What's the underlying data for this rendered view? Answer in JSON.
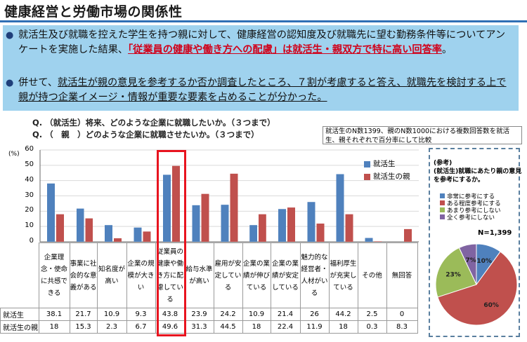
{
  "title": "健康経営と労働市場の関係性",
  "bullets": [
    {
      "pre": "就活生及び就職を控えた学生を持つ親に対して、健康経営の認知度及び就職先に望む勤務条件等についてアンケートを実施した結果、",
      "hl": "「従業員の健康や働き方への配慮」は就活生・親双方で特に高い回答率",
      "post": "。"
    },
    {
      "pre": "併せて、",
      "ul": "就活生が親の意見を参考するか否か調査したところ、７割が考慮すると答え、就職先を検討する上で親が持つ企業イメージ・情報が重要な要素を占めることが分かった。"
    }
  ],
  "questions": [
    "Q.  （就活生）将来、どのような企業に就職したいか。（３つまで）",
    "Q.  （　親　）どのような企業に就職させたいか。（３つまで）"
  ],
  "note": "就活生のN数1399、親のN数1000における複数回答数を就活生、親それぞれで百分率にして比較",
  "chart_data": [
    {
      "type": "bar",
      "ylabel": "(%)",
      "ylim": [
        0,
        60
      ],
      "yticks": [
        0,
        10,
        20,
        30,
        40,
        50,
        60
      ],
      "categories": [
        "企業理念・使命に共感できる",
        "事業に社会的な意義がある",
        "知名度が高い",
        "企業の規模が大きい",
        "従業員の健康や働き方に配慮している",
        "給与水準が高い",
        "雇用が安定している",
        "企業の業績が伸びている",
        "企業の業績が安定している",
        "魅力的な経営者・人材がいる",
        "福利厚生が充実している",
        "その他",
        "無回答"
      ],
      "series": [
        {
          "name": "就活生",
          "color": "#4f81bd",
          "values": [
            38.1,
            21.7,
            10.9,
            9.3,
            43.8,
            23.9,
            24.2,
            10.9,
            21.4,
            26,
            44.2,
            2.5,
            0
          ]
        },
        {
          "name": "就活生の親",
          "color": "#c0504d",
          "values": [
            18,
            15.3,
            2.3,
            6.7,
            49.6,
            31.3,
            44.5,
            18,
            22.4,
            11.9,
            18,
            0.3,
            8.3
          ]
        }
      ],
      "table_values": {
        "就活生": [
          "38.1",
          "21.7",
          "10.9",
          "9.3",
          "43.8",
          "23.9",
          "24.2",
          "10.9",
          "21.4",
          "26",
          "44.2",
          "2.5",
          "0"
        ],
        "就活生の親": [
          "18",
          "15.3",
          "2.3",
          "6.7",
          "49.6",
          "31.3",
          "44.5",
          "18",
          "22.4",
          "11.9",
          "18",
          "0.3",
          "8.3"
        ]
      }
    },
    {
      "type": "pie",
      "title": "(参考)\n(就活生)就職にあたり親の意見を参考にするか。",
      "labels": [
        "非常に参考にする",
        "ある程度参考にする",
        "あまり参考にしない",
        "全く参考にしない"
      ],
      "values": [
        10,
        60,
        23,
        7
      ],
      "colors": [
        "#4f81bd",
        "#c0504d",
        "#9bbb59",
        "#8064a2"
      ],
      "n": "N=1,399"
    }
  ]
}
